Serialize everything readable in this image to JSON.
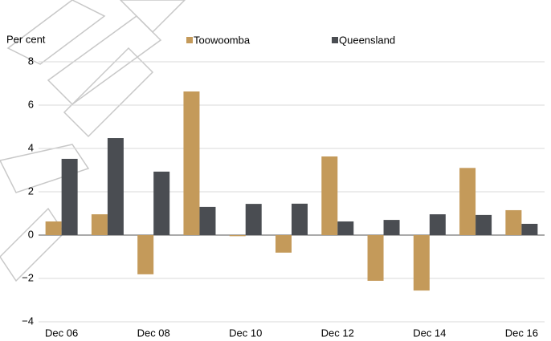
{
  "chart_data": {
    "type": "bar",
    "ylabel": "Per cent",
    "categories": [
      "Dec 06",
      null,
      "Dec 08",
      null,
      "Dec 10",
      null,
      "Dec 12",
      null,
      "Dec 14",
      null,
      "Dec 16"
    ],
    "series": [
      {
        "name": "Toowoomba",
        "color": "#c49a5a",
        "values": [
          0.63,
          0.96,
          -1.81,
          6.63,
          -0.05,
          -0.81,
          3.63,
          -2.11,
          -2.56,
          3.1,
          1.15
        ]
      },
      {
        "name": "Queensland",
        "color": "#4a4d52",
        "values": [
          3.52,
          4.48,
          2.93,
          1.3,
          1.44,
          1.45,
          0.63,
          0.7,
          0.96,
          0.93,
          0.52
        ]
      }
    ],
    "ylim": [
      -4,
      8
    ],
    "yticks": [
      {
        "value": -4,
        "label": "−4"
      },
      {
        "value": -2,
        "label": "−2"
      },
      0,
      2,
      4,
      6,
      8
    ],
    "grid": true,
    "legend": "top"
  }
}
